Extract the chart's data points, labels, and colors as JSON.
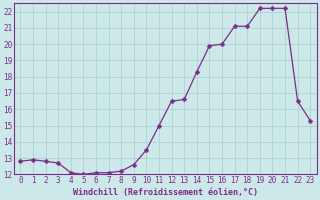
{
  "x": [
    0,
    1,
    2,
    3,
    4,
    5,
    6,
    7,
    8,
    9,
    10,
    11,
    12,
    13,
    14,
    15,
    16,
    17,
    18,
    19,
    20,
    21,
    22,
    23
  ],
  "y": [
    12.8,
    12.9,
    12.8,
    12.7,
    12.1,
    12.0,
    12.1,
    12.1,
    12.2,
    12.6,
    13.5,
    15.0,
    16.5,
    16.6,
    18.3,
    19.9,
    20.0,
    21.1,
    21.1,
    22.2,
    22.2,
    22.2,
    16.5,
    15.3
  ],
  "xlim": [
    -0.5,
    23.5
  ],
  "ylim": [
    12,
    22.5
  ],
  "ytick_values": [
    12,
    13,
    14,
    15,
    16,
    17,
    18,
    19,
    20,
    21,
    22
  ],
  "xtick_values": [
    0,
    1,
    2,
    3,
    4,
    5,
    6,
    7,
    8,
    9,
    10,
    11,
    12,
    13,
    14,
    15,
    16,
    17,
    18,
    19,
    20,
    21,
    22,
    23
  ],
  "xlabel": "Windchill (Refroidissement éolien,°C)",
  "line_color": "#7b2d8b",
  "marker_size": 2.5,
  "bg_color": "#cce8e8",
  "grid_color": "#aacece",
  "tick_color": "#7b2d8b",
  "label_color": "#7b2d8b",
  "font_family": "monospace",
  "tick_fontsize": 5.5,
  "xlabel_fontsize": 6.0
}
